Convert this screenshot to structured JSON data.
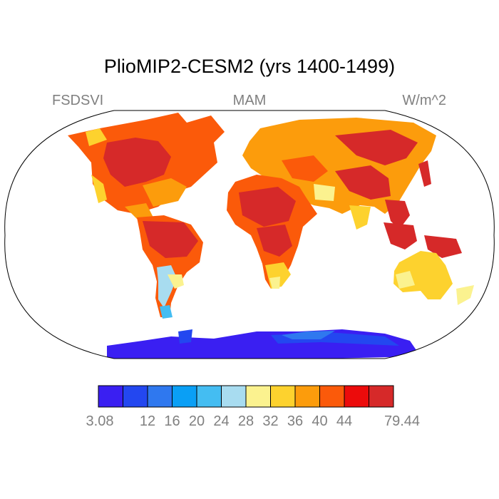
{
  "title": "PlioMIP2-CESM2 (yrs 1400-1499)",
  "variable": "FSDSVI",
  "season": "MAM",
  "units": "W/m^2",
  "projection": "Robinson-like world map",
  "colorbar": {
    "colors": [
      "#3a1ff2",
      "#2347f0",
      "#2f78ef",
      "#0a9ff5",
      "#44bdf2",
      "#a8dcf0",
      "#fbf28f",
      "#fdd22e",
      "#fc9c0c",
      "#fb5a0a",
      "#ec0b0b",
      "#d62929"
    ],
    "tick_labels": [
      "3.08",
      "12",
      "16",
      "20",
      "24",
      "28",
      "32",
      "36",
      "40",
      "44",
      "79.44"
    ]
  },
  "regions": [
    {
      "name": "North America",
      "level": "high"
    },
    {
      "name": "South America",
      "level": "high"
    },
    {
      "name": "Europe",
      "level": "moderate"
    },
    {
      "name": "Africa",
      "level": "high"
    },
    {
      "name": "Asia",
      "level": "high"
    },
    {
      "name": "Australia",
      "level": "moderate"
    },
    {
      "name": "Antarctica",
      "level": "low"
    }
  ]
}
